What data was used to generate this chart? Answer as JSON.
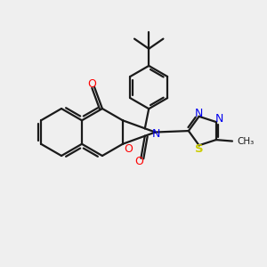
{
  "bg_color": "#efefef",
  "bond_color": "#1a1a1a",
  "o_color": "#ff0000",
  "n_color": "#0000ee",
  "s_color": "#cccc00",
  "line_width": 1.6,
  "figsize": [
    3.0,
    3.0
  ],
  "dpi": 100,
  "xlim": [
    0,
    10
  ],
  "ylim": [
    0,
    10
  ]
}
